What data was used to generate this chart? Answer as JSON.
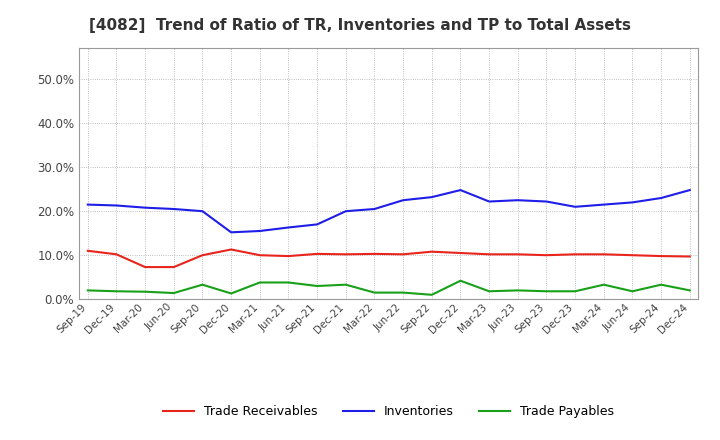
{
  "title": "[4082]  Trend of Ratio of TR, Inventories and TP to Total Assets",
  "x_labels": [
    "Sep-19",
    "Dec-19",
    "Mar-20",
    "Jun-20",
    "Sep-20",
    "Dec-20",
    "Mar-21",
    "Jun-21",
    "Sep-21",
    "Dec-21",
    "Mar-22",
    "Jun-22",
    "Sep-22",
    "Dec-22",
    "Mar-23",
    "Jun-23",
    "Sep-23",
    "Dec-23",
    "Mar-24",
    "Jun-24",
    "Sep-24",
    "Dec-24"
  ],
  "trade_receivables": [
    0.11,
    0.102,
    0.073,
    0.073,
    0.1,
    0.113,
    0.1,
    0.098,
    0.103,
    0.102,
    0.103,
    0.102,
    0.108,
    0.105,
    0.102,
    0.102,
    0.1,
    0.102,
    0.102,
    0.1,
    0.098,
    0.097
  ],
  "inventories": [
    0.215,
    0.213,
    0.208,
    0.205,
    0.2,
    0.152,
    0.155,
    0.163,
    0.17,
    0.2,
    0.205,
    0.225,
    0.232,
    0.248,
    0.222,
    0.225,
    0.222,
    0.21,
    0.215,
    0.22,
    0.23,
    0.248
  ],
  "trade_payables": [
    0.02,
    0.018,
    0.017,
    0.014,
    0.033,
    0.013,
    0.038,
    0.038,
    0.03,
    0.033,
    0.015,
    0.015,
    0.01,
    0.042,
    0.018,
    0.02,
    0.018,
    0.018,
    0.033,
    0.018,
    0.033,
    0.02
  ],
  "tr_color": "#e8241c",
  "inv_color": "#1e1ee8",
  "tp_color": "#18a018",
  "ylim": [
    0.0,
    0.57
  ],
  "yticks": [
    0.0,
    0.1,
    0.2,
    0.3,
    0.4,
    0.5
  ],
  "background_color": "#ffffff",
  "grid_color": "#aaaaaa",
  "title_fontsize": 11,
  "title_color": "#333333",
  "tick_label_color": "#444444",
  "legend_fontsize": 9,
  "line_width": 1.5
}
